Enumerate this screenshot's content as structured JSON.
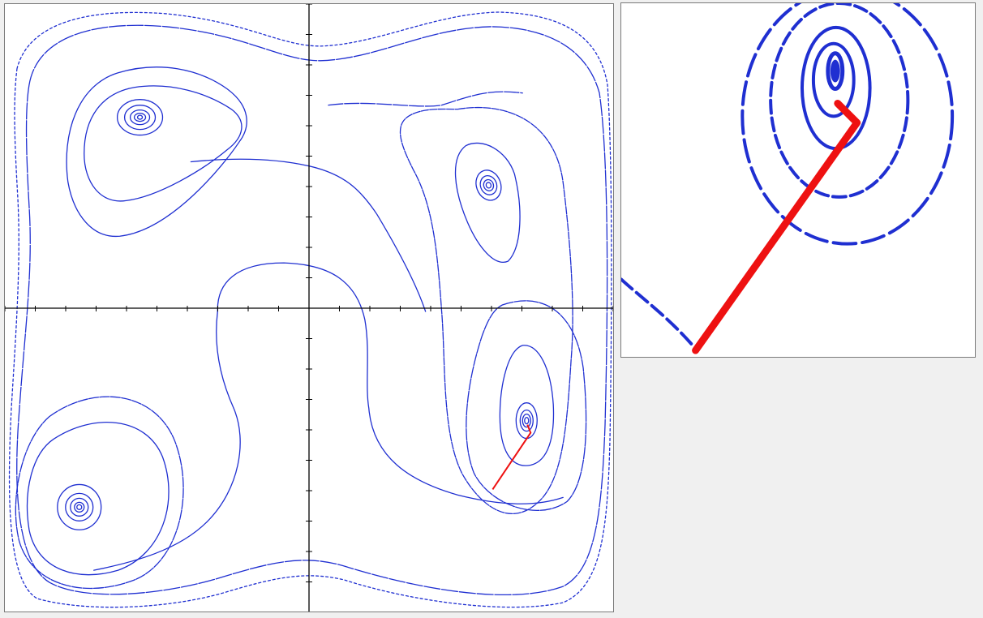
{
  "colors": {
    "contour": "#1f2fd1",
    "path": "#ee1111",
    "axis": "#000000",
    "panel_background": "#ffffff",
    "window_background": "#f0f0f0"
  },
  "main_plot": {
    "description_label": "",
    "ticks_per_axis": 20,
    "minima_count": 4,
    "path_segments": 1
  },
  "zoom_plot": {
    "description_label": ""
  }
}
